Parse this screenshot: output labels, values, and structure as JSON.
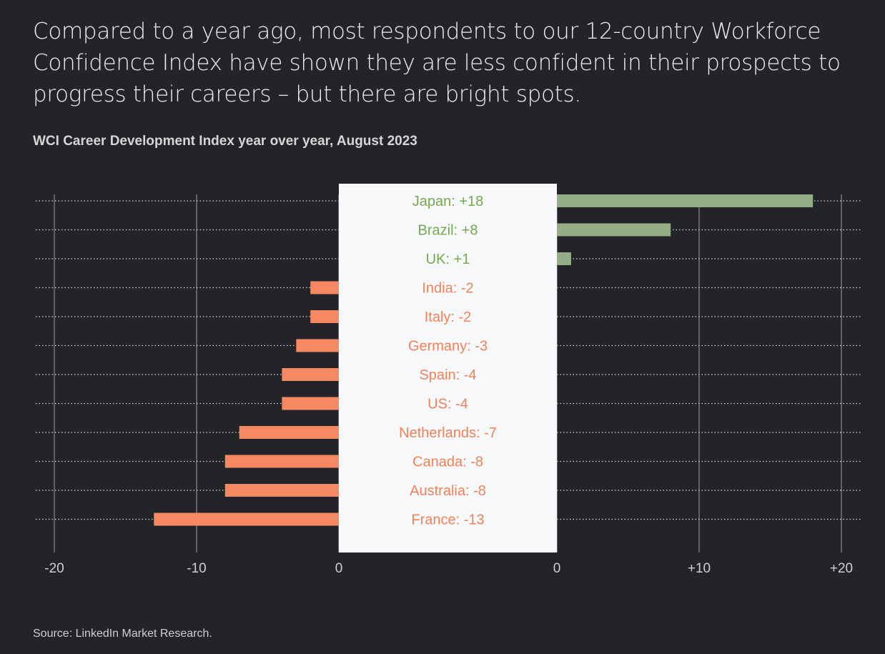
{
  "headline": "Compared to a year ago, most respondents to our 12-country Workforce Confidence Index have shown they are less confident in their prospects to progress their careers – but there are bright spots.",
  "source": "Source: LinkedIn Market Research.",
  "colors": {
    "background": "#222428",
    "positive": "#94ad85",
    "negative": "#f68962",
    "positive_text": "#77a84e",
    "negative_text": "#f28158",
    "center_panel": "#f6f8fa",
    "gridline": "#8a8c90",
    "dotted": "#d8d8d8"
  },
  "chart_data": {
    "type": "bar",
    "orientation": "horizontal",
    "title": "WCI Career Development Index year over year, August 2023",
    "xlabel": "",
    "ylabel": "",
    "xlim": [
      -20,
      20
    ],
    "categories": [
      "Japan",
      "Brazil",
      "UK",
      "India",
      "Italy",
      "Germany",
      "Spain",
      "US",
      "Netherlands",
      "Canada",
      "Australia",
      "France"
    ],
    "values": [
      18,
      8,
      1,
      -2,
      -2,
      -3,
      -4,
      -4,
      -7,
      -8,
      -8,
      -13
    ],
    "labels": [
      "Japan: +18",
      "Brazil: +8",
      "UK: +1",
      "India: -2",
      "Italy: -2",
      "Germany: -3",
      "Spain: -4",
      "US: -4",
      "Netherlands: -7",
      "Canada: -8",
      "Australia: -8",
      "France: -13"
    ],
    "negative_ticks": [
      "-20",
      "-10",
      "0"
    ],
    "positive_ticks": [
      "0",
      "+10",
      "+20"
    ],
    "grid": true
  }
}
